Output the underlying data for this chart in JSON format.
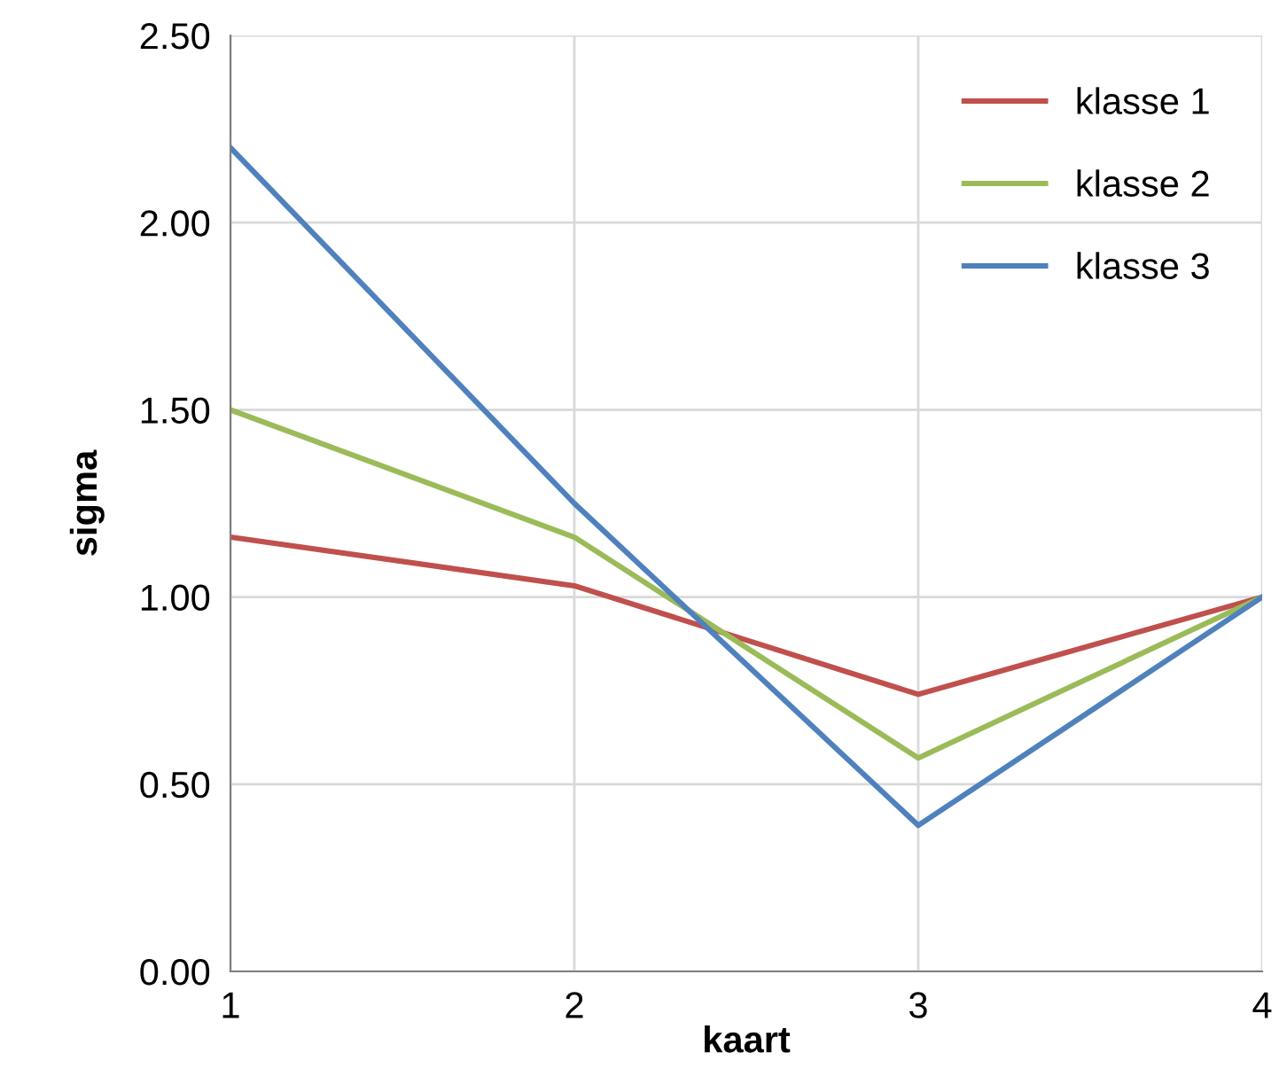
{
  "chart_data": {
    "type": "line",
    "xlabel": "kaart",
    "ylabel": "sigma",
    "x": [
      1,
      2,
      3,
      4
    ],
    "series": [
      {
        "name": "klasse 1",
        "color": "#c0504d",
        "values": [
          1.16,
          1.03,
          0.74,
          1.0
        ]
      },
      {
        "name": "klasse 2",
        "color": "#9bbb59",
        "values": [
          1.5,
          1.16,
          0.57,
          1.0
        ]
      },
      {
        "name": "klasse 3",
        "color": "#4f81bd",
        "values": [
          2.2,
          1.25,
          0.39,
          1.0
        ]
      }
    ],
    "xlim": [
      1,
      4
    ],
    "xticks": [
      1,
      2,
      3,
      4
    ],
    "ylim": [
      0,
      2.5
    ],
    "yticks": [
      {
        "value": 0,
        "label": "0.00"
      },
      {
        "value": 0.5,
        "label": "0.50"
      },
      {
        "value": 1,
        "label": "1.00"
      },
      {
        "value": 1.5,
        "label": "1.50"
      },
      {
        "value": 2,
        "label": "2.00"
      },
      {
        "value": 2.5,
        "label": "2.50"
      }
    ],
    "grid": true,
    "legend": "top right",
    "line_style": "solid",
    "marker": "none"
  }
}
